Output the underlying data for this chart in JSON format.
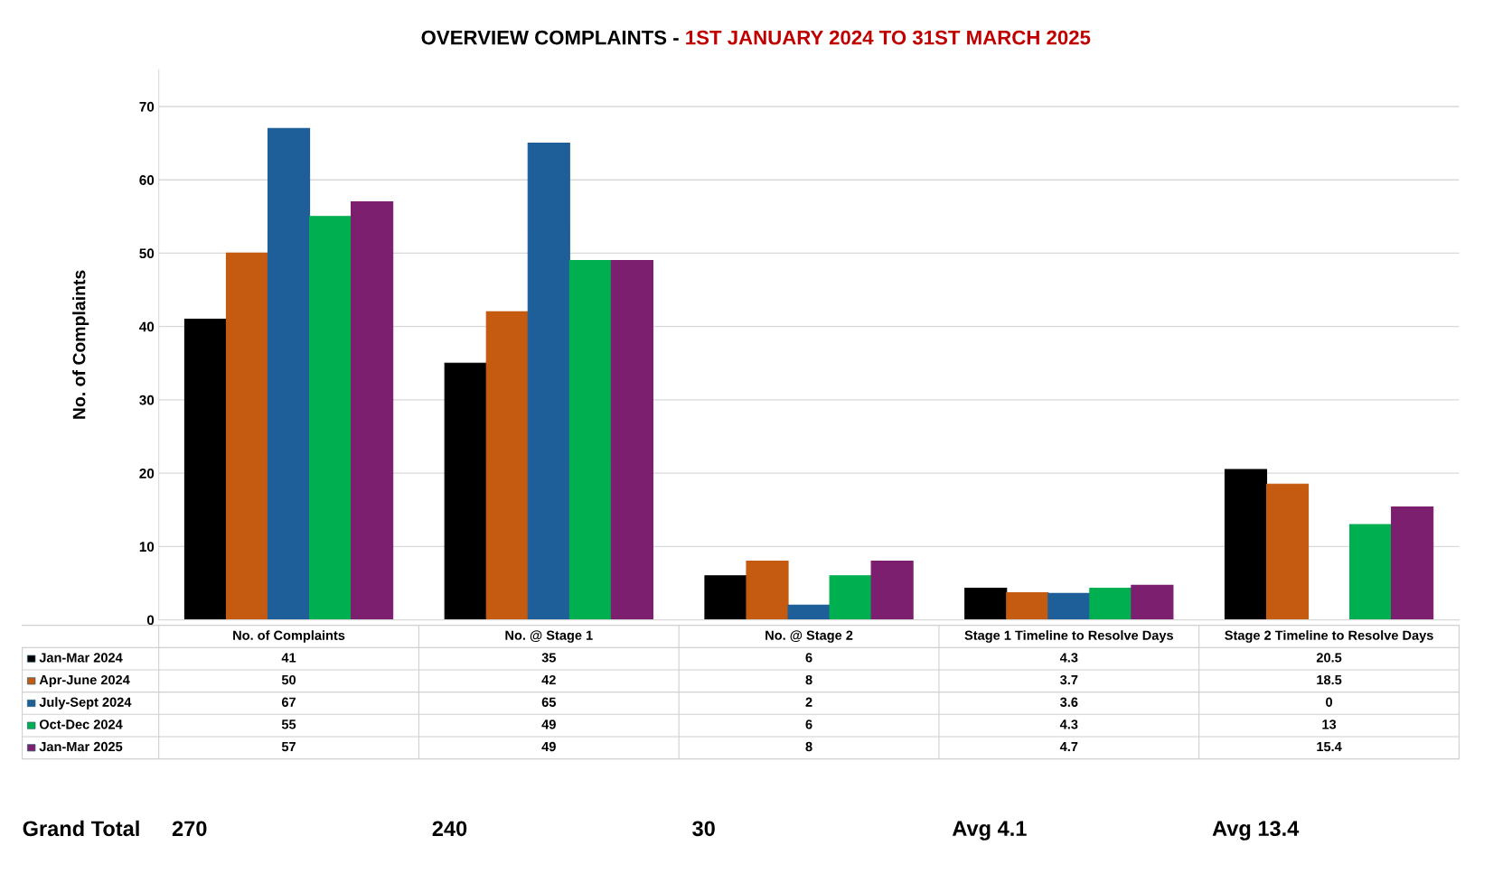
{
  "chart_data": {
    "type": "bar",
    "title": "OVERVIEW COMPLAINTS - ",
    "subtitle": "1ST JANUARY 2024 TO 31ST MARCH 2025",
    "ylabel": "No. of Complaints",
    "categories": [
      "No. of Complaints",
      "No. @ Stage 1",
      "No. @ Stage 2",
      "Stage 1 Timeline to Resolve Days",
      "Stage 2 Timeline to Resolve Days"
    ],
    "series": [
      {
        "name": "Jan-Mar 2024",
        "color": "#000000",
        "values": [
          41,
          35,
          6,
          4.3,
          20.5
        ]
      },
      {
        "name": "Apr-June 2024",
        "color": "#c55a11",
        "values": [
          50,
          42,
          8,
          3.7,
          18.5
        ]
      },
      {
        "name": "July-Sept 2024",
        "color": "#1f5f99",
        "values": [
          67,
          65,
          2,
          3.6,
          0
        ]
      },
      {
        "name": "Oct-Dec 2024",
        "color": "#00b050",
        "values": [
          55,
          49,
          6,
          4.3,
          13
        ]
      },
      {
        "name": "Jan-Mar 2025",
        "color": "#7b1f6e",
        "values": [
          57,
          49,
          8,
          4.7,
          15.4
        ]
      }
    ],
    "ylim": [
      0,
      75
    ],
    "yticks": [
      0,
      10,
      20,
      30,
      40,
      50,
      60,
      70
    ],
    "grid": "y",
    "legend": "bottom left",
    "data_labels": true,
    "annotations": [
      "Grand Total",
      "270",
      "240",
      "30",
      "Avg 4.1",
      "Avg 13.4"
    ]
  }
}
